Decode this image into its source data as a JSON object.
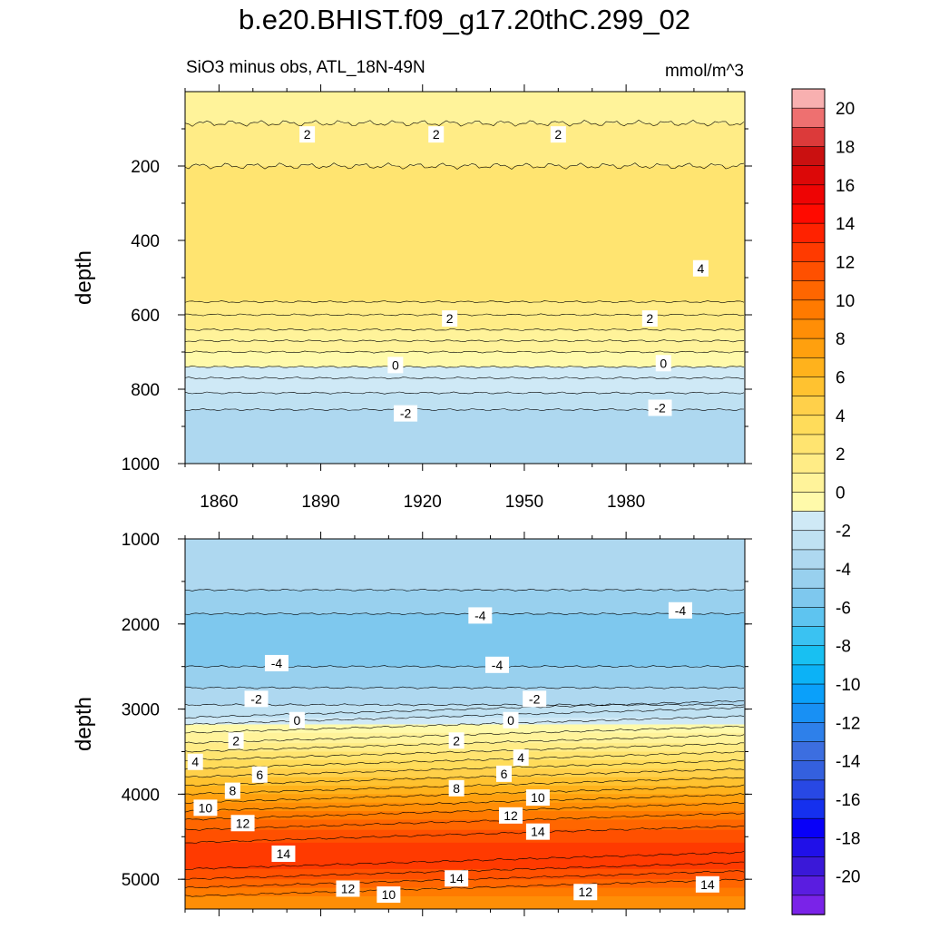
{
  "chart_data": {
    "title": "b.e20.BHIST.f09_g17.20thC.299_02",
    "subtitle_left": "SiO3 minus obs, ATL_18N-49N",
    "units": "mmol/m^3",
    "colorbar": {
      "levels": [
        -21,
        -20,
        -19,
        -18,
        -17,
        -16,
        -15,
        -14,
        -13,
        -12,
        -11,
        -10,
        -9,
        -8,
        -7,
        -6,
        -5,
        -4,
        -3,
        -2,
        -1,
        0,
        1,
        2,
        3,
        4,
        5,
        6,
        7,
        8,
        9,
        10,
        11,
        12,
        13,
        14,
        15,
        16,
        17,
        18,
        19,
        20,
        21
      ],
      "colors": [
        "#7a23e8",
        "#5a1de0",
        "#3a18d8",
        "#2010e8",
        "#0800f8",
        "#1530ee",
        "#2848e4",
        "#3460de",
        "#3c6ee0",
        "#2e80ea",
        "#1890f4",
        "#0aa0fa",
        "#0cb2f6",
        "#18c0f2",
        "#3ac2f2",
        "#5ec4f0",
        "#7ec8ee",
        "#98d0ee",
        "#aed8f0",
        "#bfe1f2",
        "#cfe9f6",
        "#fffaaa",
        "#fff39a",
        "#ffec86",
        "#ffe470",
        "#ffdc5a",
        "#ffd04a",
        "#ffc230",
        "#ffb21c",
        "#ffa00e",
        "#ff8e06",
        "#ff7a00",
        "#ff6600",
        "#ff5000",
        "#ff3a00",
        "#ff2200",
        "#ff0a00",
        "#ee0404",
        "#dc0808",
        "#ca1010",
        "#dc3a3a",
        "#ee7070",
        "#f8b0b0"
      ],
      "tick_labels": [
        "20",
        "18",
        "16",
        "14",
        "12",
        "10",
        "8",
        "6",
        "4",
        "2",
        "0",
        "-2",
        "-4",
        "-6",
        "-8",
        "-10",
        "-12",
        "-14",
        "-16",
        "-18",
        "-20"
      ]
    },
    "top_panel": {
      "type": "contour",
      "ylabel": "depth",
      "xlim": [
        1850,
        2015
      ],
      "ylim": [
        1000,
        0
      ],
      "x_ticks": [
        1860,
        1890,
        1920,
        1950,
        1980
      ],
      "x_tick_labels": [
        "1860",
        "1890",
        "1920",
        "1950",
        "1980"
      ],
      "y_ticks": [
        200,
        400,
        600,
        800,
        1000
      ],
      "y_tick_labels": [
        "200",
        "400",
        "600",
        "800",
        "1000"
      ],
      "bands": [
        {
          "top": 0,
          "bottom": 85,
          "value": 1.5
        },
        {
          "top": 85,
          "bottom": 200,
          "value": 2.5
        },
        {
          "top": 200,
          "bottom": 565,
          "value": 3.5
        },
        {
          "top": 565,
          "bottom": 600,
          "value": 2.5
        },
        {
          "top": 600,
          "bottom": 640,
          "value": 2.0
        },
        {
          "top": 640,
          "bottom": 670,
          "value": 1.5
        },
        {
          "top": 670,
          "bottom": 700,
          "value": 1.0
        },
        {
          "top": 700,
          "bottom": 740,
          "value": 0.5
        },
        {
          "top": 740,
          "bottom": 770,
          "value": -0.5
        },
        {
          "top": 770,
          "bottom": 810,
          "value": -1.0
        },
        {
          "top": 810,
          "bottom": 855,
          "value": -1.5
        },
        {
          "top": 855,
          "bottom": 1000,
          "value": -2.5
        }
      ],
      "contour_labels": [
        {
          "x": 1886,
          "y": 115,
          "text": "2"
        },
        {
          "x": 1924,
          "y": 115,
          "text": "2"
        },
        {
          "x": 1960,
          "y": 115,
          "text": "2"
        },
        {
          "x": 2002,
          "y": 475,
          "text": "4"
        },
        {
          "x": 1928,
          "y": 610,
          "text": "2"
        },
        {
          "x": 1987,
          "y": 610,
          "text": "2"
        },
        {
          "x": 1912,
          "y": 735,
          "text": "0"
        },
        {
          "x": 1991,
          "y": 730,
          "text": "0"
        },
        {
          "x": 1915,
          "y": 865,
          "text": "-2"
        },
        {
          "x": 1990,
          "y": 850,
          "text": "-2"
        }
      ]
    },
    "bottom_panel": {
      "type": "contour",
      "ylabel": "depth",
      "xlim": [
        1850,
        2015
      ],
      "ylim": [
        5350,
        1000
      ],
      "y_ticks": [
        1000,
        2000,
        3000,
        4000,
        5000
      ],
      "y_tick_labels": [
        "1000",
        "2000",
        "3000",
        "4000",
        "5000"
      ],
      "bands": [
        {
          "top": 1000,
          "bottom": 1600,
          "value": -2.5
        },
        {
          "top": 1600,
          "bottom": 1880,
          "value": -3.5
        },
        {
          "top": 1880,
          "bottom": 2500,
          "value": -4.5
        },
        {
          "top": 2500,
          "bottom": 2750,
          "value": -3.5
        },
        {
          "top": 2750,
          "bottom": 2950,
          "value": -2.5
        },
        {
          "top": 2950,
          "bottom": 3100,
          "value": -1.5
        },
        {
          "top": 3100,
          "bottom": 3180,
          "value": -0.5
        },
        {
          "top": 3180,
          "bottom": 3280,
          "value": 0.5
        },
        {
          "top": 3280,
          "bottom": 3400,
          "value": 1.5
        },
        {
          "top": 3400,
          "bottom": 3500,
          "value": 2.5
        },
        {
          "top": 3500,
          "bottom": 3600,
          "value": 3.5
        },
        {
          "top": 3600,
          "bottom": 3700,
          "value": 4.5
        },
        {
          "top": 3700,
          "bottom": 3800,
          "value": 5.5
        },
        {
          "top": 3800,
          "bottom": 3900,
          "value": 6.5
        },
        {
          "top": 3900,
          "bottom": 4000,
          "value": 7.5
        },
        {
          "top": 4000,
          "bottom": 4100,
          "value": 8.5
        },
        {
          "top": 4100,
          "bottom": 4200,
          "value": 9.5
        },
        {
          "top": 4200,
          "bottom": 4300,
          "value": 10.5
        },
        {
          "top": 4300,
          "bottom": 4420,
          "value": 11.5
        },
        {
          "top": 4420,
          "bottom": 4570,
          "value": 12.5
        },
        {
          "top": 4570,
          "bottom": 4880,
          "value": 13.5
        },
        {
          "top": 4880,
          "bottom": 5000,
          "value": 12.5
        },
        {
          "top": 5000,
          "bottom": 5100,
          "value": 11.5
        },
        {
          "top": 5100,
          "bottom": 5200,
          "value": 10.5
        },
        {
          "top": 5200,
          "bottom": 5350,
          "value": 9.5
        }
      ],
      "contour_labels": [
        {
          "x": 1937,
          "y": 1900,
          "text": "-4"
        },
        {
          "x": 1996,
          "y": 1840,
          "text": "-4"
        },
        {
          "x": 1877,
          "y": 2460,
          "text": "-4"
        },
        {
          "x": 1942,
          "y": 2480,
          "text": "-4"
        },
        {
          "x": 1871,
          "y": 2880,
          "text": "-2"
        },
        {
          "x": 1953,
          "y": 2880,
          "text": "-2"
        },
        {
          "x": 1883,
          "y": 3130,
          "text": "0"
        },
        {
          "x": 1946,
          "y": 3130,
          "text": "0"
        },
        {
          "x": 1865,
          "y": 3370,
          "text": "2"
        },
        {
          "x": 1930,
          "y": 3370,
          "text": "2"
        },
        {
          "x": 1853,
          "y": 3620,
          "text": "4"
        },
        {
          "x": 1949,
          "y": 3570,
          "text": "4"
        },
        {
          "x": 1872,
          "y": 3770,
          "text": "6"
        },
        {
          "x": 1944,
          "y": 3760,
          "text": "6"
        },
        {
          "x": 1864,
          "y": 3960,
          "text": "8"
        },
        {
          "x": 1930,
          "y": 3930,
          "text": "8"
        },
        {
          "x": 1856,
          "y": 4160,
          "text": "10"
        },
        {
          "x": 1954,
          "y": 4040,
          "text": "10"
        },
        {
          "x": 1867,
          "y": 4340,
          "text": "12"
        },
        {
          "x": 1946,
          "y": 4250,
          "text": "12"
        },
        {
          "x": 1954,
          "y": 4440,
          "text": "14"
        },
        {
          "x": 1879,
          "y": 4700,
          "text": "14"
        },
        {
          "x": 1930,
          "y": 4990,
          "text": "14"
        },
        {
          "x": 2004,
          "y": 5060,
          "text": "14"
        },
        {
          "x": 1898,
          "y": 5110,
          "text": "12"
        },
        {
          "x": 1968,
          "y": 5150,
          "text": "12"
        },
        {
          "x": 1910,
          "y": 5180,
          "text": "10"
        }
      ]
    }
  }
}
